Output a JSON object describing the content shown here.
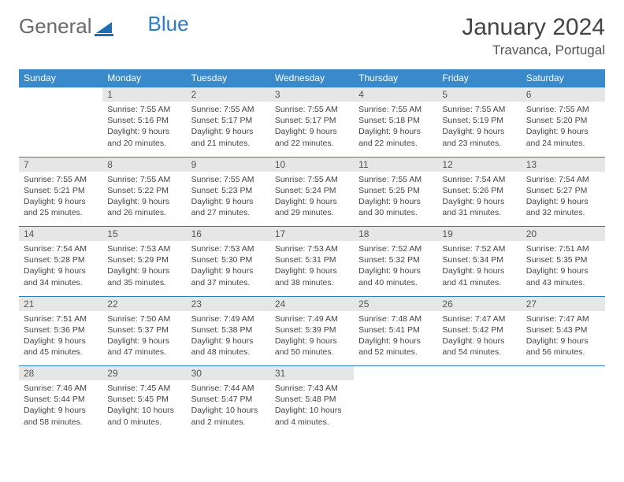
{
  "brand": {
    "part1": "General",
    "part2": "Blue"
  },
  "title": "January 2024",
  "location": "Travanca, Portugal",
  "weekdays": [
    "Sunday",
    "Monday",
    "Tuesday",
    "Wednesday",
    "Thursday",
    "Friday",
    "Saturday"
  ],
  "colors": {
    "header_bg": "#3a8acb",
    "header_text": "#ffffff",
    "daynum_bg": "#e6e6e6",
    "border": "#2a7cc4",
    "logo_accent": "#1f6fb5"
  },
  "weeks": [
    [
      {
        "n": "",
        "sr": "",
        "ss": "",
        "dl": ""
      },
      {
        "n": "1",
        "sr": "Sunrise: 7:55 AM",
        "ss": "Sunset: 5:16 PM",
        "dl": "Daylight: 9 hours and 20 minutes."
      },
      {
        "n": "2",
        "sr": "Sunrise: 7:55 AM",
        "ss": "Sunset: 5:17 PM",
        "dl": "Daylight: 9 hours and 21 minutes."
      },
      {
        "n": "3",
        "sr": "Sunrise: 7:55 AM",
        "ss": "Sunset: 5:17 PM",
        "dl": "Daylight: 9 hours and 22 minutes."
      },
      {
        "n": "4",
        "sr": "Sunrise: 7:55 AM",
        "ss": "Sunset: 5:18 PM",
        "dl": "Daylight: 9 hours and 22 minutes."
      },
      {
        "n": "5",
        "sr": "Sunrise: 7:55 AM",
        "ss": "Sunset: 5:19 PM",
        "dl": "Daylight: 9 hours and 23 minutes."
      },
      {
        "n": "6",
        "sr": "Sunrise: 7:55 AM",
        "ss": "Sunset: 5:20 PM",
        "dl": "Daylight: 9 hours and 24 minutes."
      }
    ],
    [
      {
        "n": "7",
        "sr": "Sunrise: 7:55 AM",
        "ss": "Sunset: 5:21 PM",
        "dl": "Daylight: 9 hours and 25 minutes."
      },
      {
        "n": "8",
        "sr": "Sunrise: 7:55 AM",
        "ss": "Sunset: 5:22 PM",
        "dl": "Daylight: 9 hours and 26 minutes."
      },
      {
        "n": "9",
        "sr": "Sunrise: 7:55 AM",
        "ss": "Sunset: 5:23 PM",
        "dl": "Daylight: 9 hours and 27 minutes."
      },
      {
        "n": "10",
        "sr": "Sunrise: 7:55 AM",
        "ss": "Sunset: 5:24 PM",
        "dl": "Daylight: 9 hours and 29 minutes."
      },
      {
        "n": "11",
        "sr": "Sunrise: 7:55 AM",
        "ss": "Sunset: 5:25 PM",
        "dl": "Daylight: 9 hours and 30 minutes."
      },
      {
        "n": "12",
        "sr": "Sunrise: 7:54 AM",
        "ss": "Sunset: 5:26 PM",
        "dl": "Daylight: 9 hours and 31 minutes."
      },
      {
        "n": "13",
        "sr": "Sunrise: 7:54 AM",
        "ss": "Sunset: 5:27 PM",
        "dl": "Daylight: 9 hours and 32 minutes."
      }
    ],
    [
      {
        "n": "14",
        "sr": "Sunrise: 7:54 AM",
        "ss": "Sunset: 5:28 PM",
        "dl": "Daylight: 9 hours and 34 minutes."
      },
      {
        "n": "15",
        "sr": "Sunrise: 7:53 AM",
        "ss": "Sunset: 5:29 PM",
        "dl": "Daylight: 9 hours and 35 minutes."
      },
      {
        "n": "16",
        "sr": "Sunrise: 7:53 AM",
        "ss": "Sunset: 5:30 PM",
        "dl": "Daylight: 9 hours and 37 minutes."
      },
      {
        "n": "17",
        "sr": "Sunrise: 7:53 AM",
        "ss": "Sunset: 5:31 PM",
        "dl": "Daylight: 9 hours and 38 minutes."
      },
      {
        "n": "18",
        "sr": "Sunrise: 7:52 AM",
        "ss": "Sunset: 5:32 PM",
        "dl": "Daylight: 9 hours and 40 minutes."
      },
      {
        "n": "19",
        "sr": "Sunrise: 7:52 AM",
        "ss": "Sunset: 5:34 PM",
        "dl": "Daylight: 9 hours and 41 minutes."
      },
      {
        "n": "20",
        "sr": "Sunrise: 7:51 AM",
        "ss": "Sunset: 5:35 PM",
        "dl": "Daylight: 9 hours and 43 minutes."
      }
    ],
    [
      {
        "n": "21",
        "sr": "Sunrise: 7:51 AM",
        "ss": "Sunset: 5:36 PM",
        "dl": "Daylight: 9 hours and 45 minutes."
      },
      {
        "n": "22",
        "sr": "Sunrise: 7:50 AM",
        "ss": "Sunset: 5:37 PM",
        "dl": "Daylight: 9 hours and 47 minutes."
      },
      {
        "n": "23",
        "sr": "Sunrise: 7:49 AM",
        "ss": "Sunset: 5:38 PM",
        "dl": "Daylight: 9 hours and 48 minutes."
      },
      {
        "n": "24",
        "sr": "Sunrise: 7:49 AM",
        "ss": "Sunset: 5:39 PM",
        "dl": "Daylight: 9 hours and 50 minutes."
      },
      {
        "n": "25",
        "sr": "Sunrise: 7:48 AM",
        "ss": "Sunset: 5:41 PM",
        "dl": "Daylight: 9 hours and 52 minutes."
      },
      {
        "n": "26",
        "sr": "Sunrise: 7:47 AM",
        "ss": "Sunset: 5:42 PM",
        "dl": "Daylight: 9 hours and 54 minutes."
      },
      {
        "n": "27",
        "sr": "Sunrise: 7:47 AM",
        "ss": "Sunset: 5:43 PM",
        "dl": "Daylight: 9 hours and 56 minutes."
      }
    ],
    [
      {
        "n": "28",
        "sr": "Sunrise: 7:46 AM",
        "ss": "Sunset: 5:44 PM",
        "dl": "Daylight: 9 hours and 58 minutes."
      },
      {
        "n": "29",
        "sr": "Sunrise: 7:45 AM",
        "ss": "Sunset: 5:45 PM",
        "dl": "Daylight: 10 hours and 0 minutes."
      },
      {
        "n": "30",
        "sr": "Sunrise: 7:44 AM",
        "ss": "Sunset: 5:47 PM",
        "dl": "Daylight: 10 hours and 2 minutes."
      },
      {
        "n": "31",
        "sr": "Sunrise: 7:43 AM",
        "ss": "Sunset: 5:48 PM",
        "dl": "Daylight: 10 hours and 4 minutes."
      },
      {
        "n": "",
        "sr": "",
        "ss": "",
        "dl": ""
      },
      {
        "n": "",
        "sr": "",
        "ss": "",
        "dl": ""
      },
      {
        "n": "",
        "sr": "",
        "ss": "",
        "dl": ""
      }
    ]
  ]
}
